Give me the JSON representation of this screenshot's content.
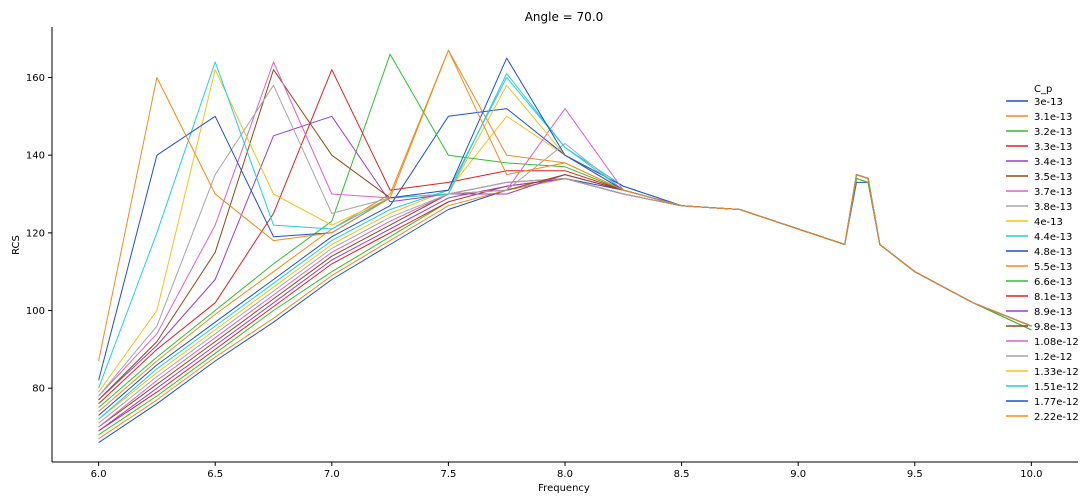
{
  "chart_data": {
    "type": "line",
    "title": "Angle = 70.0",
    "xlabel": "Frequency",
    "ylabel": "RCS",
    "xlim": [
      5.8,
      10.2
    ],
    "ylim": [
      61,
      173
    ],
    "x_ticks": [
      6.0,
      6.5,
      7.0,
      7.5,
      8.0,
      8.5,
      9.0,
      9.5,
      10.0
    ],
    "x_tick_labels": [
      "6.0",
      "6.5",
      "7.0",
      "7.5",
      "8.0",
      "8.5",
      "9.0",
      "9.5",
      "10.0"
    ],
    "y_ticks": [
      80,
      100,
      120,
      140,
      160
    ],
    "y_tick_labels": [
      "80",
      "100",
      "120",
      "140",
      "160"
    ],
    "grid": false,
    "legend_title": "C_p",
    "legend_placement": "right",
    "x": [
      6.0,
      6.25,
      6.5,
      6.75,
      7.0,
      7.25,
      7.5,
      7.75,
      8.0,
      8.25,
      8.5,
      8.75,
      9.0,
      9.2,
      9.25,
      9.3,
      9.35,
      9.5,
      9.75,
      10.0
    ],
    "series": [
      {
        "name": "3e-13",
        "color": "#1f4fd6",
        "values": [
          66,
          76,
          87,
          97,
          108,
          117,
          126,
          131,
          134,
          131,
          127,
          126,
          121,
          117,
          133,
          133,
          117,
          110,
          102,
          95
        ]
      },
      {
        "name": "3.1e-13",
        "color": "#f28a1a",
        "values": [
          67,
          77,
          88,
          98,
          109,
          118,
          127,
          131,
          134,
          130,
          127,
          126,
          121,
          117,
          134,
          133,
          117,
          110,
          102,
          95
        ]
      },
      {
        "name": "3.2e-13",
        "color": "#2ec22e",
        "values": [
          68,
          78,
          89,
          100,
          110,
          119,
          128,
          132,
          134,
          130,
          127,
          126,
          121,
          117,
          134,
          133,
          117,
          110,
          102,
          95
        ]
      },
      {
        "name": "3.3e-13",
        "color": "#e02020",
        "values": [
          69,
          79,
          90,
          101,
          112,
          120,
          128,
          132,
          134,
          130,
          127,
          126,
          121,
          117,
          135,
          134,
          117,
          110,
          102,
          96
        ]
      },
      {
        "name": "3.4e-13",
        "color": "#9a3ecf",
        "values": [
          69,
          80,
          91,
          102,
          113,
          121,
          129,
          132,
          134,
          130,
          127,
          126,
          121,
          117,
          135,
          134,
          117,
          110,
          102,
          96
        ]
      },
      {
        "name": "3.5e-13",
        "color": "#8f4a13",
        "values": [
          70,
          81,
          92,
          103,
          114,
          122,
          130,
          133,
          134,
          130,
          127,
          126,
          121,
          117,
          135,
          134,
          117,
          110,
          102,
          96
        ]
      },
      {
        "name": "3.7e-13",
        "color": "#e060c8",
        "values": [
          70,
          82,
          93,
          104,
          115,
          123,
          130,
          133,
          134,
          130,
          127,
          126,
          121,
          117,
          135,
          134,
          117,
          110,
          102,
          96
        ]
      },
      {
        "name": "3.8e-13",
        "color": "#a6a6a6",
        "values": [
          71,
          83,
          94,
          105,
          116,
          124,
          130,
          133,
          134,
          130,
          127,
          126,
          121,
          117,
          135,
          134,
          117,
          110,
          102,
          96
        ]
      },
      {
        "name": "4e-13",
        "color": "#f0c419",
        "values": [
          72,
          84,
          95,
          106,
          117,
          125,
          131,
          150,
          140,
          132,
          127,
          126,
          121,
          117,
          135,
          134,
          117,
          110,
          102,
          96
        ]
      },
      {
        "name": "4.4e-13",
        "color": "#21cde8",
        "values": [
          72,
          85,
          96,
          107,
          118,
          126,
          131,
          160,
          142,
          132,
          127,
          126,
          121,
          117,
          135,
          134,
          117,
          110,
          102,
          96
        ]
      },
      {
        "name": "4.8e-13",
        "color": "#1f4fd6",
        "values": [
          73,
          86,
          97,
          108,
          119,
          127,
          150,
          152,
          140,
          132,
          127,
          126,
          121,
          117,
          135,
          134,
          117,
          110,
          102,
          96
        ]
      },
      {
        "name": "5.5e-13",
        "color": "#f28a1a",
        "values": [
          74,
          87,
          99,
          110,
          121,
          130,
          167,
          140,
          138,
          131,
          127,
          126,
          121,
          117,
          135,
          134,
          117,
          110,
          102,
          96
        ]
      },
      {
        "name": "6.6e-13",
        "color": "#2ec22e",
        "values": [
          75,
          88,
          100,
          112,
          123,
          166,
          140,
          138,
          137,
          131,
          127,
          126,
          121,
          117,
          135,
          134,
          117,
          110,
          102,
          96
        ]
      },
      {
        "name": "8.1e-13",
        "color": "#e02020",
        "values": [
          76,
          90,
          102,
          125,
          162,
          131,
          133,
          136,
          136,
          131,
          127,
          126,
          121,
          117,
          135,
          134,
          117,
          110,
          102,
          96
        ]
      },
      {
        "name": "8.9e-13",
        "color": "#9a3ecf",
        "values": [
          77,
          91,
          108,
          145,
          150,
          128,
          130,
          130,
          135,
          131,
          127,
          126,
          121,
          117,
          135,
          134,
          117,
          110,
          102,
          96
        ]
      },
      {
        "name": "9.8e-13",
        "color": "#8f4a13",
        "values": [
          77,
          92,
          115,
          162,
          140,
          129,
          130,
          131,
          135,
          131,
          127,
          126,
          121,
          117,
          135,
          134,
          117,
          110,
          102,
          96
        ]
      },
      {
        "name": "1.08e-12",
        "color": "#e060c8",
        "values": [
          78,
          94,
          122,
          164,
          130,
          129,
          130,
          131,
          152,
          131,
          127,
          126,
          121,
          117,
          135,
          134,
          117,
          110,
          102,
          96
        ]
      },
      {
        "name": "1.2e-12",
        "color": "#a6a6a6",
        "values": [
          78,
          96,
          135,
          158,
          125,
          129,
          130,
          131,
          143,
          131,
          127,
          126,
          121,
          117,
          135,
          134,
          117,
          110,
          102,
          96
        ]
      },
      {
        "name": "1.33e-12",
        "color": "#f0c419",
        "values": [
          79,
          100,
          162,
          130,
          122,
          129,
          130,
          158,
          140,
          131,
          127,
          126,
          121,
          117,
          135,
          134,
          117,
          110,
          102,
          96
        ]
      },
      {
        "name": "1.51e-12",
        "color": "#21cde8",
        "values": [
          80,
          120,
          164,
          122,
          121,
          129,
          130,
          161,
          142,
          131,
          127,
          126,
          121,
          117,
          135,
          134,
          117,
          110,
          102,
          96
        ]
      },
      {
        "name": "1.77e-12",
        "color": "#1f4fd6",
        "values": [
          82,
          140,
          150,
          119,
          120,
          129,
          131,
          165,
          140,
          131,
          127,
          126,
          121,
          117,
          135,
          134,
          117,
          110,
          102,
          96
        ]
      },
      {
        "name": "2.22e-12",
        "color": "#f28a1a",
        "values": [
          87,
          160,
          130,
          118,
          120,
          129,
          167,
          135,
          138,
          131,
          127,
          126,
          121,
          117,
          135,
          134,
          117,
          110,
          102,
          96
        ]
      }
    ]
  }
}
